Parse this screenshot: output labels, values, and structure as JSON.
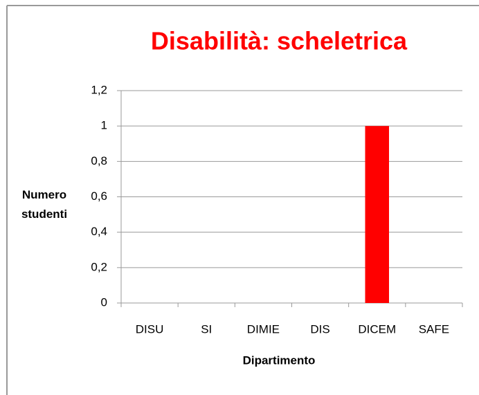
{
  "chart_data": {
    "type": "bar",
    "title": "Disabilità: scheletrica",
    "x_label": "Dipartimento",
    "y_label": "Numero studenti",
    "categories": [
      "DISU",
      "SI",
      "DIMIE",
      "DIS",
      "DICEM",
      "SAFE"
    ],
    "values": [
      0,
      0,
      0,
      0,
      1,
      0
    ],
    "color": "#ff0000",
    "ylim": [
      0,
      1.2
    ],
    "yticks": [
      0,
      {
        "value": 0.2,
        "label": "0,2"
      },
      {
        "value": 0.4,
        "label": "0,4"
      },
      {
        "value": 0.6,
        "label": "0,6"
      },
      {
        "value": 0.8,
        "label": "0,8"
      },
      1,
      {
        "value": 1.2,
        "label": "1,2"
      }
    ],
    "grid": true
  }
}
